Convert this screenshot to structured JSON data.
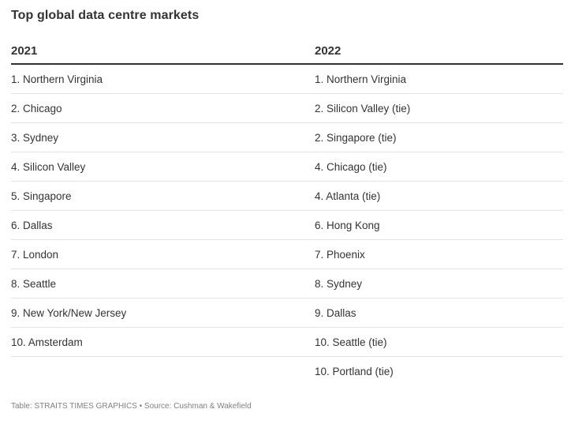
{
  "title": "Top global data centre markets",
  "columns": [
    "2021",
    "2022"
  ],
  "rows": [
    [
      "1. Northern Virginia",
      "1. Northern Virginia"
    ],
    [
      "2. Chicago",
      "2. Silicon Valley (tie)"
    ],
    [
      "3. Sydney",
      "2. Singapore (tie)"
    ],
    [
      "4. Silicon Valley",
      "4. Chicago (tie)"
    ],
    [
      "5. Singapore",
      "4. Atlanta (tie)"
    ],
    [
      "6. Dallas",
      "6. Hong Kong"
    ],
    [
      "7. London",
      "7. Phoenix"
    ],
    [
      "8. Seattle",
      "8. Sydney"
    ],
    [
      "9. New York/New Jersey",
      "9. Dallas"
    ],
    [
      "10. Amsterdam",
      "10. Seattle (tie)"
    ],
    [
      "",
      "10. Portland (tie)"
    ]
  ],
  "footer": "Table: STRAITS TIMES GRAPHICS • Source: Cushman & Wakefield",
  "colors": {
    "text": "#333333",
    "rule": "#333333",
    "row_divider": "#e3e3e3",
    "footer": "#808080"
  }
}
